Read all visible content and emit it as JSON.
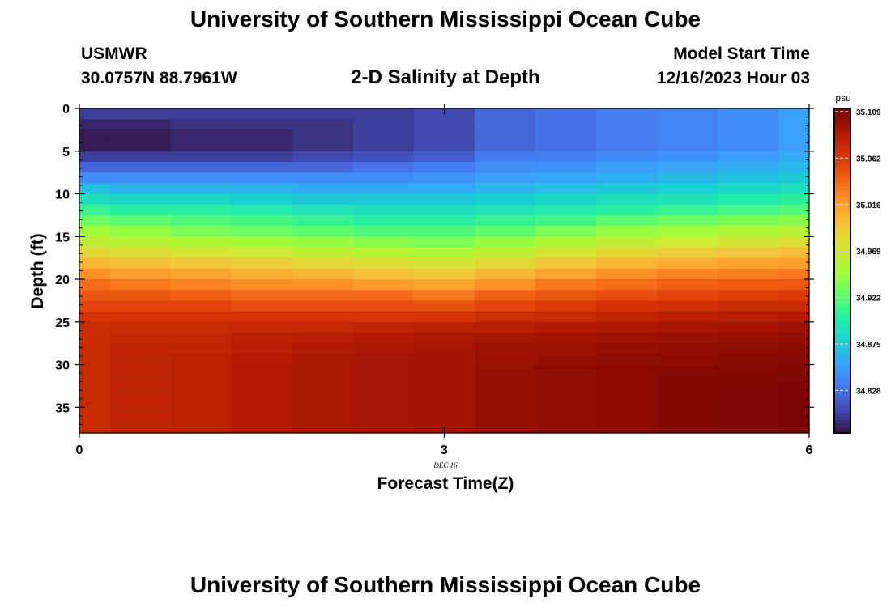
{
  "header": {
    "title": "University of Southern Mississippi Ocean Cube",
    "station": "USMWR",
    "coordinates": "30.0757N  88.7961W",
    "plot_title": "2-D Salinity at Depth",
    "model_start_label": "Model Start Time",
    "model_start_time": "12/16/2023 Hour 03"
  },
  "footer": {
    "title": "University of Southern Mississippi Ocean Cube"
  },
  "chart_data": {
    "type": "heatmap",
    "title": "2-D Salinity at Depth",
    "xlabel": "Forecast Time(Z)",
    "ylabel": "Depth (ft)",
    "x_ticks": [
      "0",
      "3",
      "6"
    ],
    "x_range": [
      0,
      6
    ],
    "date_label": "DEC 16",
    "y_ticks": [
      "0",
      "5",
      "10",
      "15",
      "20",
      "25",
      "30",
      "35"
    ],
    "y_range": [
      0,
      38
    ],
    "colorbar": {
      "units": "psu",
      "ticks": [
        "35.109",
        "35.062",
        "35.016",
        "34.969",
        "34.922",
        "34.875",
        "34.828"
      ],
      "min": 34.78,
      "max": 35.109,
      "colors": [
        "#30123b",
        "#4145ab",
        "#4675ed",
        "#39a2fc",
        "#1bcfd4",
        "#24eca6",
        "#61fc6c",
        "#a4fc3b",
        "#d1e834",
        "#f3c63a",
        "#fe9b2d",
        "#f36315",
        "#d93806",
        "#b11901",
        "#7a0402"
      ]
    },
    "x": [
      0,
      0.25,
      0.75,
      1.25,
      1.75,
      2.25,
      2.75,
      3.25,
      3.75,
      4.25,
      4.75,
      5.25,
      5.75,
      6
    ],
    "depth": [
      0,
      1.25,
      2.5,
      3.75,
      5,
      6.25,
      7.5,
      8.75,
      10,
      11.25,
      12.5,
      13.75,
      15,
      16.25,
      17.5,
      18.75,
      20,
      21.25,
      22.5,
      23.75,
      25,
      26.25,
      27.5,
      28.75,
      30,
      31.25,
      32.5,
      33.75,
      35,
      36.25,
      38
    ],
    "salinity_profiles": [
      [
        34.8,
        34.79,
        34.785,
        34.785,
        34.8,
        34.82,
        34.84,
        34.865,
        34.885,
        34.905,
        34.925,
        34.945,
        34.96,
        34.98,
        35.0,
        35.02,
        35.035,
        35.045,
        35.055,
        35.065,
        35.07,
        35.07,
        35.072,
        35.072,
        35.072,
        35.072,
        35.072,
        35.072,
        35.072,
        35.072
      ],
      [
        34.8,
        34.79,
        34.785,
        34.785,
        34.8,
        34.82,
        34.84,
        34.86,
        34.88,
        34.9,
        34.92,
        34.94,
        34.955,
        34.975,
        34.995,
        35.015,
        35.03,
        35.045,
        35.055,
        35.065,
        35.072,
        35.075,
        35.077,
        35.078,
        35.078,
        35.078,
        35.078,
        35.078,
        35.078,
        35.078
      ],
      [
        34.8,
        34.795,
        34.79,
        34.79,
        34.8,
        34.82,
        34.84,
        34.86,
        34.88,
        34.9,
        34.915,
        34.93,
        34.95,
        34.97,
        34.99,
        35.01,
        35.025,
        35.04,
        35.055,
        35.065,
        35.072,
        35.076,
        35.078,
        35.08,
        35.08,
        35.08,
        35.08,
        35.08,
        35.08,
        35.08
      ],
      [
        34.8,
        34.795,
        34.79,
        34.79,
        34.8,
        34.82,
        34.84,
        34.86,
        34.875,
        34.895,
        34.91,
        34.925,
        34.945,
        34.965,
        34.985,
        35.005,
        35.02,
        35.035,
        35.05,
        35.065,
        35.075,
        35.08,
        35.082,
        35.084,
        35.085,
        35.085,
        35.085,
        35.085,
        35.085,
        35.085
      ],
      [
        34.8,
        34.795,
        34.795,
        34.795,
        34.805,
        34.82,
        34.84,
        34.855,
        34.87,
        34.89,
        34.905,
        34.92,
        34.94,
        34.96,
        34.98,
        35.0,
        35.02,
        35.035,
        35.05,
        35.065,
        35.075,
        35.082,
        35.085,
        35.087,
        35.088,
        35.088,
        35.088,
        35.088,
        35.088,
        35.088
      ],
      [
        34.8,
        34.8,
        34.8,
        34.8,
        34.81,
        34.825,
        34.84,
        34.855,
        34.87,
        34.885,
        34.9,
        34.915,
        34.935,
        34.955,
        34.975,
        34.995,
        35.015,
        35.035,
        35.05,
        35.065,
        35.078,
        35.085,
        35.088,
        35.09,
        35.09,
        35.09,
        35.09,
        35.09,
        35.09,
        35.09
      ],
      [
        34.805,
        34.805,
        34.805,
        34.805,
        34.815,
        34.83,
        34.845,
        34.855,
        34.87,
        34.885,
        34.9,
        34.915,
        34.93,
        34.95,
        34.97,
        34.99,
        35.01,
        35.03,
        35.048,
        35.065,
        35.08,
        35.088,
        35.09,
        35.092,
        35.092,
        35.092,
        35.092,
        35.092,
        35.092,
        35.092
      ],
      [
        34.82,
        34.82,
        34.82,
        34.82,
        34.83,
        34.84,
        34.85,
        34.86,
        34.875,
        34.89,
        34.905,
        34.92,
        34.94,
        34.96,
        34.98,
        35.0,
        35.02,
        35.04,
        35.055,
        35.07,
        35.082,
        35.09,
        35.093,
        35.095,
        35.097,
        35.097,
        35.097,
        35.097,
        35.097,
        35.097
      ],
      [
        34.825,
        34.825,
        34.825,
        34.825,
        34.832,
        34.842,
        34.852,
        34.865,
        34.88,
        34.895,
        34.91,
        34.93,
        34.95,
        34.97,
        34.99,
        35.01,
        35.03,
        35.045,
        35.06,
        35.073,
        35.085,
        35.092,
        35.095,
        35.097,
        35.1,
        35.1,
        35.1,
        35.1,
        35.1,
        35.1
      ],
      [
        34.83,
        34.83,
        34.83,
        34.83,
        34.838,
        34.848,
        34.858,
        34.87,
        34.885,
        34.9,
        34.92,
        34.94,
        34.96,
        34.98,
        35.0,
        35.02,
        35.035,
        35.05,
        35.065,
        35.077,
        35.088,
        35.094,
        35.097,
        35.1,
        35.102,
        35.102,
        35.102,
        35.102,
        35.102,
        35.102
      ],
      [
        34.835,
        34.835,
        34.835,
        34.835,
        34.842,
        34.852,
        34.862,
        34.875,
        34.89,
        34.905,
        34.925,
        34.945,
        34.965,
        34.985,
        35.005,
        35.025,
        35.04,
        35.055,
        35.068,
        35.08,
        35.09,
        35.096,
        35.099,
        35.101,
        35.103,
        35.105,
        35.105,
        35.105,
        35.105,
        35.105
      ],
      [
        34.84,
        34.84,
        34.84,
        34.84,
        34.847,
        34.857,
        34.867,
        34.88,
        34.895,
        34.91,
        34.93,
        34.95,
        34.97,
        34.99,
        35.01,
        35.028,
        35.043,
        35.058,
        35.07,
        35.082,
        35.092,
        35.097,
        35.1,
        35.103,
        35.105,
        35.106,
        35.107,
        35.107,
        35.107,
        35.107
      ],
      [
        34.85,
        34.85,
        34.85,
        34.85,
        34.855,
        34.862,
        34.872,
        34.885,
        34.9,
        34.915,
        34.935,
        34.955,
        34.975,
        34.995,
        35.013,
        35.03,
        35.045,
        35.06,
        35.072,
        35.084,
        35.094,
        35.099,
        35.102,
        35.104,
        35.106,
        35.107,
        35.108,
        35.109,
        35.109,
        35.109
      ]
    ]
  }
}
